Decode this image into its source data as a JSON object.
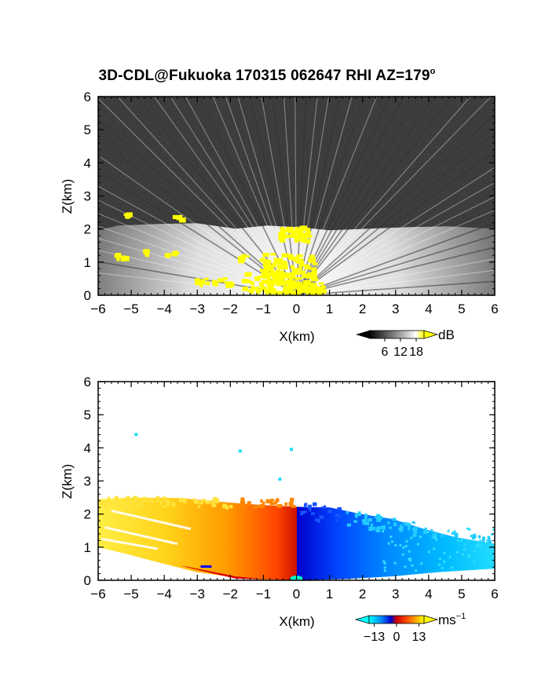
{
  "title": {
    "main": "3D-CDL@Fukuoka 170315 062647 RHI AZ=179",
    "degree_sup": "o"
  },
  "colors": {
    "frame": "#000000",
    "yellow": "#ffff00",
    "background_dark": "#2a2a2a"
  },
  "chart_data": [
    {
      "type": "heatmap",
      "name": "intensity",
      "xlabel": "X(km)",
      "ylabel": "Z(km)",
      "xlim": [
        -6,
        6
      ],
      "ylim": [
        0,
        6
      ],
      "xticks": [
        "−6",
        "−5",
        "−4",
        "−3",
        "−2",
        "−1",
        "0",
        "1",
        "2",
        "3",
        "4",
        "5",
        "6"
      ],
      "yticks": [
        "0",
        "1",
        "2",
        "3",
        "4",
        "5",
        "6"
      ],
      "colorbar": {
        "unit": "dB",
        "ticks": [
          "6",
          "12",
          "18"
        ],
        "range": [
          0,
          21
        ],
        "colors": [
          "#000000",
          "#555555",
          "#aaaaaa",
          "#ffffff",
          "#ffff00"
        ]
      },
      "layer_top_km": 2.2
    },
    {
      "type": "heatmap",
      "name": "doppler_velocity",
      "xlabel": "X(km)",
      "ylabel": "Z(km)",
      "xlim": [
        -6,
        6
      ],
      "ylim": [
        0,
        6
      ],
      "xticks": [
        "−6",
        "−5",
        "−4",
        "−3",
        "−2",
        "−1",
        "0",
        "1",
        "2",
        "3",
        "4",
        "5",
        "6"
      ],
      "yticks": [
        "0",
        "1",
        "2",
        "3",
        "4",
        "5",
        "6"
      ],
      "colorbar": {
        "unit": "ms",
        "unit_sup": "−1",
        "ticks": [
          "−13",
          "0",
          "13"
        ],
        "range": [
          -16,
          16
        ],
        "colors": [
          "#00ffff",
          "#0066ff",
          "#0000cc",
          "#cc0000",
          "#ff4400",
          "#ff9900",
          "#ffff00"
        ]
      },
      "layer_top_km": 2.3
    }
  ]
}
